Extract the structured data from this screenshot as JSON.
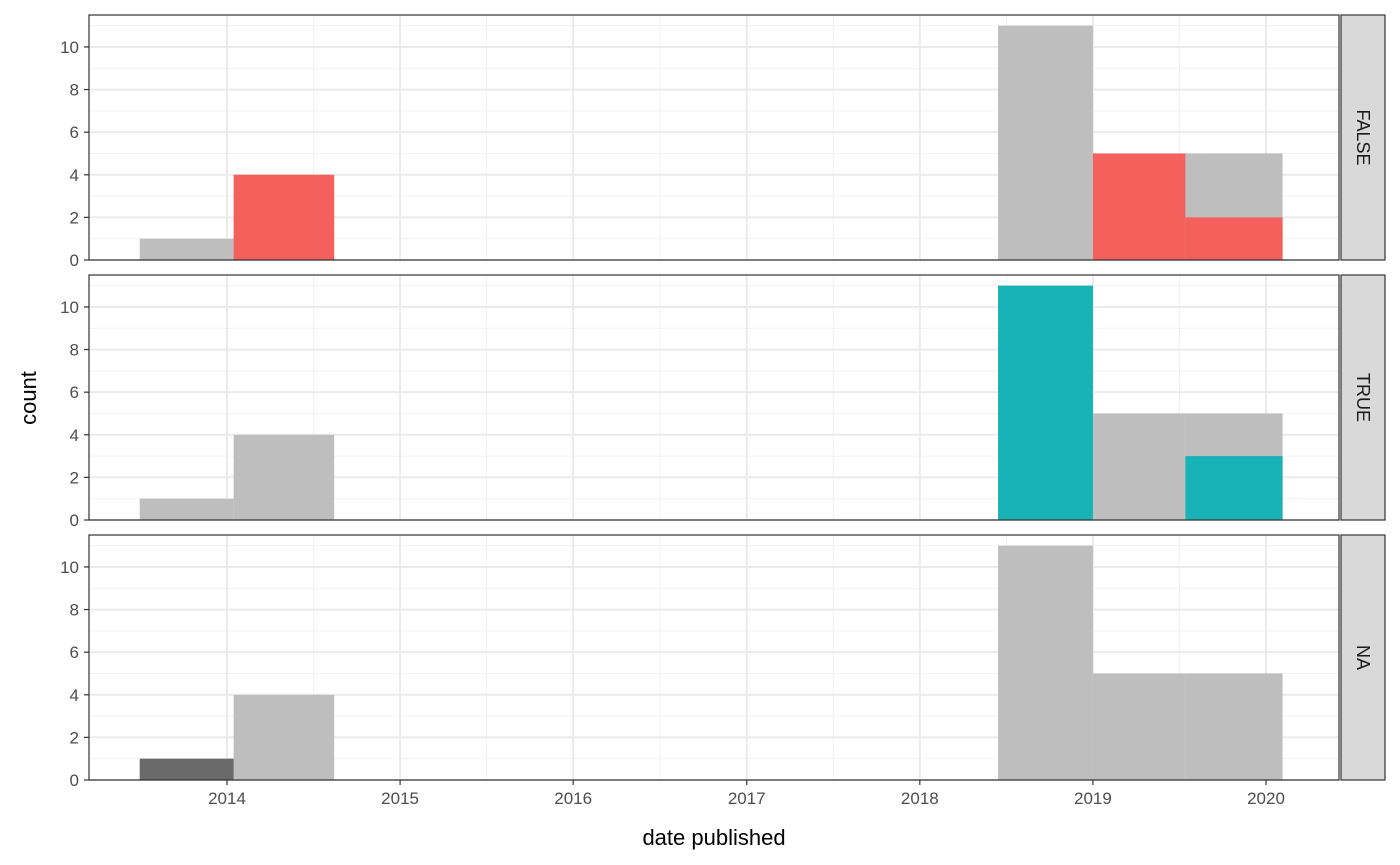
{
  "chart_data": {
    "type": "bar",
    "subtype": "faceted histogram with grey background of all data",
    "xlabel": "date published",
    "ylabel": "count",
    "x_ticks": [
      "2014",
      "2015",
      "2016",
      "2017",
      "2018",
      "2019",
      "2020"
    ],
    "y_ticks": [
      0,
      2,
      4,
      6,
      8,
      10
    ],
    "ylim": [
      0,
      11.5
    ],
    "grid": true,
    "legend": "none",
    "bins": [
      {
        "start": "2013-07-01",
        "end": "2014-01-15"
      },
      {
        "start": "2014-01-15",
        "end": "2014-08-15"
      },
      {
        "start": "2018-06-15",
        "end": "2019-01-01"
      },
      {
        "start": "2019-01-01",
        "end": "2019-07-15"
      },
      {
        "start": "2019-07-15",
        "end": "2020-02-05"
      }
    ],
    "background_counts": [
      1,
      4,
      11,
      5,
      5
    ],
    "background_color": "#bebebe",
    "facets": [
      {
        "label": "FALSE",
        "color": "#f4605c",
        "counts": [
          0,
          4,
          0,
          5,
          2
        ]
      },
      {
        "label": "TRUE",
        "color": "#18b3b7",
        "counts": [
          0,
          0,
          11,
          0,
          3
        ]
      },
      {
        "label": "NA",
        "color": "#696969",
        "counts": [
          1,
          0,
          0,
          0,
          0
        ]
      }
    ]
  }
}
